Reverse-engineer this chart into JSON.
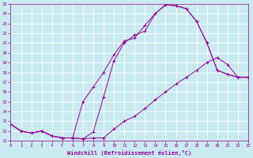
{
  "xlabel": "Windchill (Refroidissement éolien,°C)",
  "xlim": [
    0,
    23
  ],
  "ylim": [
    11,
    25
  ],
  "xticks": [
    0,
    1,
    2,
    3,
    4,
    5,
    6,
    7,
    8,
    9,
    10,
    11,
    12,
    13,
    14,
    15,
    16,
    17,
    18,
    19,
    20,
    21,
    22,
    23
  ],
  "yticks": [
    11,
    12,
    13,
    14,
    15,
    16,
    17,
    18,
    19,
    20,
    21,
    22,
    23,
    24,
    25
  ],
  "bg_color": "#c8eaf0",
  "line_color": "#990099",
  "line1_x": [
    0,
    1,
    2,
    3,
    4,
    5,
    6,
    7,
    8,
    9,
    10,
    11,
    12,
    13,
    14,
    15,
    16,
    17,
    18,
    19,
    20,
    21,
    22,
    23
  ],
  "line1_y": [
    12.7,
    12.0,
    11.8,
    12.0,
    11.5,
    11.3,
    11.3,
    11.2,
    11.9,
    15.5,
    19.2,
    21.0,
    21.8,
    22.2,
    24.0,
    24.9,
    24.8,
    24.5,
    23.2,
    21.0,
    18.2,
    17.8,
    17.5,
    17.5
  ],
  "line2_x": [
    0,
    1,
    2,
    3,
    4,
    5,
    6,
    7,
    8,
    9,
    10,
    11,
    12,
    13,
    14,
    15,
    16,
    17,
    18,
    19,
    20,
    21,
    22,
    23
  ],
  "line2_y": [
    12.7,
    12.0,
    11.8,
    12.0,
    11.5,
    11.3,
    11.3,
    11.2,
    11.3,
    11.3,
    12.2,
    13.0,
    13.5,
    14.3,
    15.2,
    16.0,
    16.8,
    17.5,
    18.2,
    19.0,
    19.5,
    18.8,
    17.5,
    17.5
  ],
  "line3_x": [
    0,
    1,
    2,
    3,
    4,
    5,
    6,
    7,
    8,
    9,
    10,
    11,
    12,
    13,
    14,
    15,
    16,
    17,
    18,
    19,
    20,
    21,
    22,
    23
  ],
  "line3_y": [
    12.7,
    12.0,
    11.8,
    12.0,
    11.5,
    11.3,
    11.3,
    15.0,
    16.5,
    18.0,
    19.8,
    21.2,
    21.5,
    22.8,
    24.0,
    24.9,
    24.8,
    24.5,
    23.2,
    21.0,
    18.2,
    17.8,
    17.5,
    17.5
  ]
}
